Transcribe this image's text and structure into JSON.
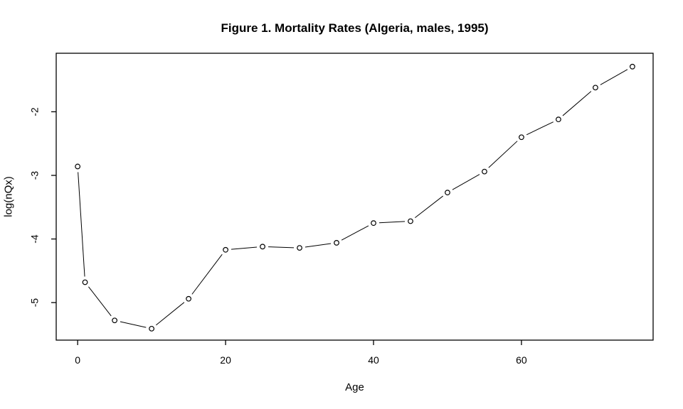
{
  "chart_data": {
    "type": "line",
    "title": "Figure 1. Mortality Rates (Algeria, males, 1995)",
    "xlabel": "Age",
    "ylabel": "log(nQx)",
    "x": [
      0,
      1,
      5,
      10,
      15,
      20,
      25,
      30,
      35,
      40,
      45,
      50,
      55,
      60,
      65,
      70,
      75
    ],
    "y": [
      -2.86,
      -4.68,
      -5.28,
      -5.41,
      -4.94,
      -4.17,
      -4.12,
      -4.14,
      -4.06,
      -3.75,
      -3.72,
      -3.27,
      -2.94,
      -2.4,
      -2.12,
      -1.62,
      -1.29
    ],
    "xticks": [
      0,
      20,
      40,
      60
    ],
    "yticks": [
      -2,
      -3,
      -4,
      -5
    ],
    "xlim": [
      -2.9,
      77.8
    ],
    "ylim": [
      -5.59,
      -1.08
    ],
    "marker": "open-circle",
    "line_color": "#000000",
    "background_color": "#ffffff",
    "grid": false,
    "legend": false
  }
}
